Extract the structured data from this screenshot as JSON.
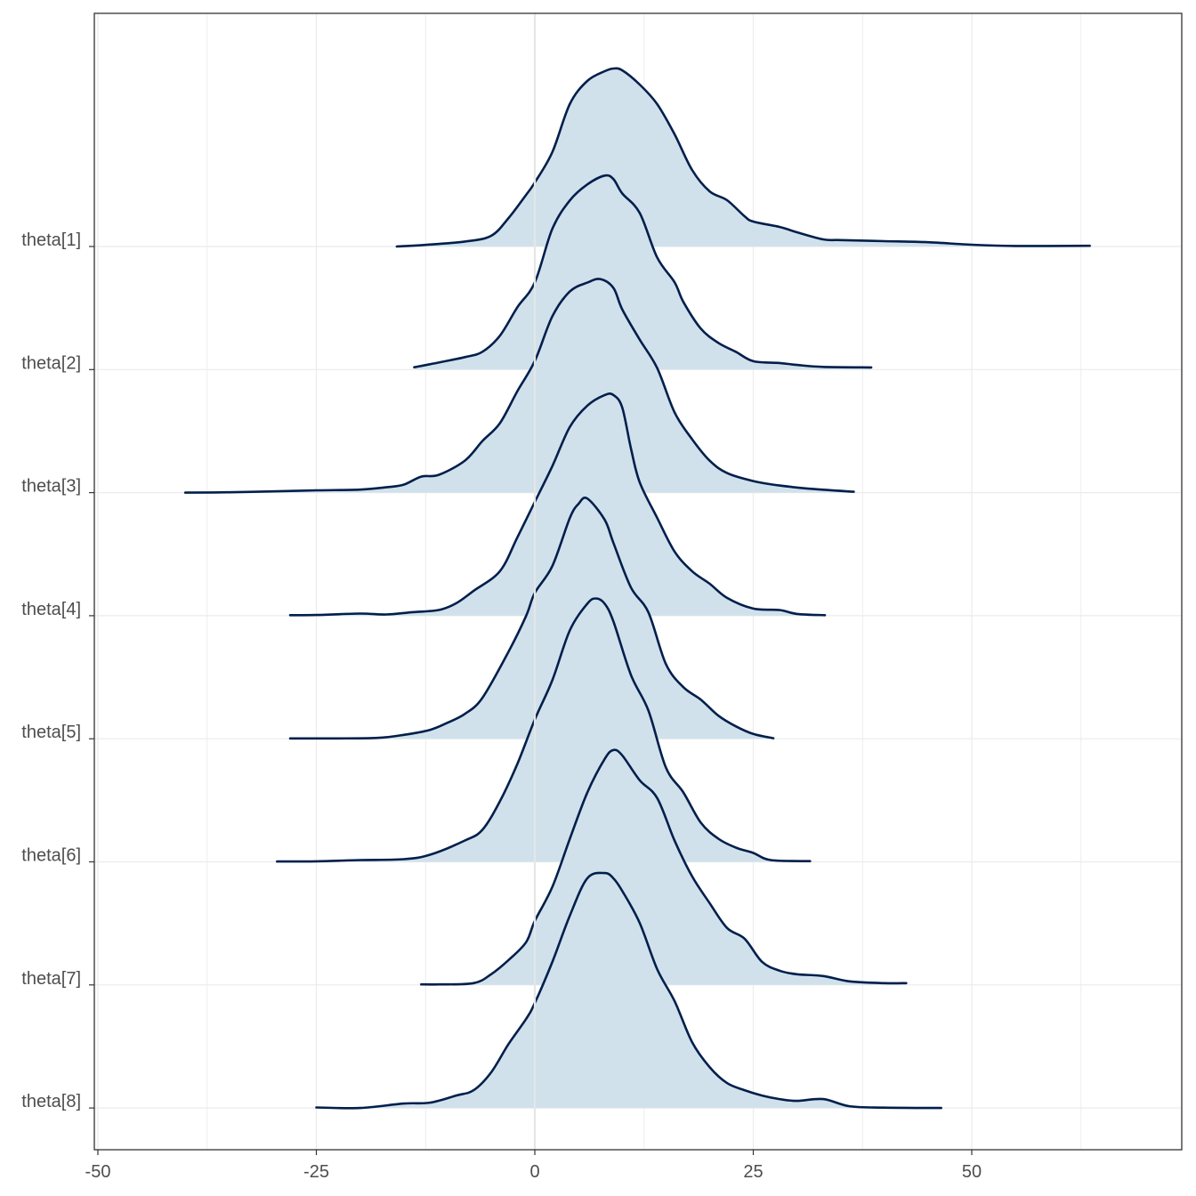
{
  "chart_data": {
    "type": "ridgeline",
    "title": "",
    "xlabel": "",
    "ylabel": "",
    "xlim": [
      -50,
      72
    ],
    "x_ticks": [
      -50,
      -25,
      0,
      25,
      50
    ],
    "x_tick_labels": [
      "-50",
      "-25",
      "0",
      "25",
      "50"
    ],
    "grid": true,
    "legend": "none",
    "colors": {
      "fill": "#d1e1ec",
      "line": "#011f4b",
      "grid": "#ebebeb",
      "vline": "#e6e6e6"
    },
    "vline_x": 0,
    "series": [
      {
        "name": "theta[1]",
        "density": [
          [
            -15.8,
            0
          ],
          [
            -12.5,
            0.009
          ],
          [
            -8,
            0.028
          ],
          [
            -5,
            0.06
          ],
          [
            -3,
            0.16
          ],
          [
            -1,
            0.29
          ],
          [
            0,
            0.36
          ],
          [
            2,
            0.53
          ],
          [
            4,
            0.8
          ],
          [
            6,
            0.93
          ],
          [
            8,
            0.985
          ],
          [
            9,
            1.0
          ],
          [
            10,
            0.99
          ],
          [
            12,
            0.91
          ],
          [
            14,
            0.8
          ],
          [
            16,
            0.63
          ],
          [
            18,
            0.43
          ],
          [
            20,
            0.31
          ],
          [
            22,
            0.26
          ],
          [
            24,
            0.17
          ],
          [
            25,
            0.14
          ],
          [
            28,
            0.11
          ],
          [
            30,
            0.08
          ],
          [
            33,
            0.04
          ],
          [
            35,
            0.036
          ],
          [
            40,
            0.03
          ],
          [
            45,
            0.024
          ],
          [
            50,
            0.01
          ],
          [
            55,
            0.003
          ],
          [
            63.5,
            0.004
          ]
        ]
      },
      {
        "name": "theta[2]",
        "density": [
          [
            -13.8,
            0.013
          ],
          [
            -12,
            0.03
          ],
          [
            -8,
            0.07
          ],
          [
            -6,
            0.1
          ],
          [
            -4,
            0.19
          ],
          [
            -2,
            0.35
          ],
          [
            0,
            0.49
          ],
          [
            2,
            0.79
          ],
          [
            4,
            0.95
          ],
          [
            6,
            1.04
          ],
          [
            8,
            1.09
          ],
          [
            9,
            1.07
          ],
          [
            10,
            0.99
          ],
          [
            12,
            0.88
          ],
          [
            14,
            0.63
          ],
          [
            16,
            0.49
          ],
          [
            17,
            0.38
          ],
          [
            19,
            0.23
          ],
          [
            21,
            0.15
          ],
          [
            23,
            0.1
          ],
          [
            25,
            0.047
          ],
          [
            28,
            0.037
          ],
          [
            30,
            0.026
          ],
          [
            33,
            0.015
          ],
          [
            38.5,
            0.012
          ]
        ]
      },
      {
        "name": "theta[3]",
        "density": [
          [
            -40,
            0
          ],
          [
            -35,
            0.002
          ],
          [
            -30,
            0.007
          ],
          [
            -25,
            0.013
          ],
          [
            -20,
            0.017
          ],
          [
            -17,
            0.03
          ],
          [
            -15,
            0.045
          ],
          [
            -13,
            0.09
          ],
          [
            -11,
            0.1
          ],
          [
            -8,
            0.18
          ],
          [
            -6,
            0.29
          ],
          [
            -4,
            0.39
          ],
          [
            -2,
            0.57
          ],
          [
            0,
            0.74
          ],
          [
            2,
            0.99
          ],
          [
            4,
            1.13
          ],
          [
            6,
            1.18
          ],
          [
            7.5,
            1.2
          ],
          [
            9,
            1.15
          ],
          [
            10,
            1.03
          ],
          [
            12,
            0.86
          ],
          [
            14,
            0.7
          ],
          [
            16,
            0.45
          ],
          [
            18,
            0.3
          ],
          [
            20,
            0.18
          ],
          [
            22,
            0.11
          ],
          [
            25,
            0.065
          ],
          [
            28,
            0.04
          ],
          [
            32,
            0.02
          ],
          [
            36.5,
            0.005
          ]
        ]
      },
      {
        "name": "theta[4]",
        "density": [
          [
            -28,
            0.003
          ],
          [
            -25,
            0.004
          ],
          [
            -20,
            0.012
          ],
          [
            -17,
            0.007
          ],
          [
            -14,
            0.02
          ],
          [
            -11,
            0.032
          ],
          [
            -9,
            0.07
          ],
          [
            -7,
            0.14
          ],
          [
            -4,
            0.25
          ],
          [
            -2,
            0.44
          ],
          [
            0,
            0.64
          ],
          [
            2,
            0.84
          ],
          [
            4,
            1.06
          ],
          [
            6,
            1.18
          ],
          [
            8,
            1.24
          ],
          [
            9,
            1.24
          ],
          [
            10,
            1.17
          ],
          [
            11,
            0.94
          ],
          [
            12,
            0.75
          ],
          [
            14,
            0.55
          ],
          [
            16,
            0.36
          ],
          [
            18,
            0.25
          ],
          [
            20,
            0.18
          ],
          [
            22,
            0.1
          ],
          [
            25,
            0.04
          ],
          [
            28,
            0.032
          ],
          [
            30,
            0.01
          ],
          [
            33.2,
            0.003
          ]
        ]
      },
      {
        "name": "theta[5]",
        "density": [
          [
            -28,
            0.002
          ],
          [
            -23,
            0.002
          ],
          [
            -18,
            0.005
          ],
          [
            -15,
            0.022
          ],
          [
            -12,
            0.05
          ],
          [
            -10,
            0.09
          ],
          [
            -8,
            0.14
          ],
          [
            -6,
            0.23
          ],
          [
            -3,
            0.49
          ],
          [
            -1,
            0.69
          ],
          [
            0,
            0.82
          ],
          [
            2,
            0.97
          ],
          [
            4,
            1.24
          ],
          [
            5,
            1.32
          ],
          [
            6,
            1.35
          ],
          [
            8,
            1.23
          ],
          [
            9,
            1.1
          ],
          [
            11,
            0.85
          ],
          [
            13,
            0.71
          ],
          [
            15,
            0.42
          ],
          [
            17,
            0.29
          ],
          [
            19,
            0.22
          ],
          [
            21,
            0.13
          ],
          [
            23,
            0.07
          ],
          [
            25,
            0.027
          ],
          [
            27.3,
            0.003
          ]
        ]
      },
      {
        "name": "theta[6]",
        "density": [
          [
            -29.5,
            0.002
          ],
          [
            -25,
            0.003
          ],
          [
            -20,
            0.01
          ],
          [
            -15,
            0.015
          ],
          [
            -12,
            0.04
          ],
          [
            -8,
            0.12
          ],
          [
            -6,
            0.18
          ],
          [
            -4,
            0.34
          ],
          [
            -2,
            0.55
          ],
          [
            0,
            0.8
          ],
          [
            2,
            1.02
          ],
          [
            4,
            1.3
          ],
          [
            6,
            1.45
          ],
          [
            7,
            1.48
          ],
          [
            8,
            1.45
          ],
          [
            9,
            1.35
          ],
          [
            11,
            1.05
          ],
          [
            13,
            0.85
          ],
          [
            15,
            0.53
          ],
          [
            17,
            0.39
          ],
          [
            19,
            0.22
          ],
          [
            21,
            0.13
          ],
          [
            23,
            0.08
          ],
          [
            25,
            0.05
          ],
          [
            27,
            0.01
          ],
          [
            31.5,
            0.004
          ]
        ]
      },
      {
        "name": "theta[7]",
        "density": [
          [
            -13,
            0.003
          ],
          [
            -11,
            0.003
          ],
          [
            -7,
            0.01
          ],
          [
            -5,
            0.06
          ],
          [
            -3,
            0.14
          ],
          [
            -1,
            0.24
          ],
          [
            0,
            0.36
          ],
          [
            2,
            0.55
          ],
          [
            4,
            0.82
          ],
          [
            6,
            1.08
          ],
          [
            8,
            1.27
          ],
          [
            9,
            1.32
          ],
          [
            10,
            1.29
          ],
          [
            12,
            1.15
          ],
          [
            14,
            1.05
          ],
          [
            16,
            0.81
          ],
          [
            18,
            0.61
          ],
          [
            20,
            0.46
          ],
          [
            22,
            0.32
          ],
          [
            24,
            0.26
          ],
          [
            26,
            0.13
          ],
          [
            28,
            0.08
          ],
          [
            30,
            0.06
          ],
          [
            33,
            0.05
          ],
          [
            36,
            0.02
          ],
          [
            40,
            0.01
          ],
          [
            42.5,
            0.01
          ]
        ]
      },
      {
        "name": "theta[8]",
        "density": [
          [
            -25,
            0.003
          ],
          [
            -20,
            0
          ],
          [
            -15,
            0.025
          ],
          [
            -12,
            0.03
          ],
          [
            -9,
            0.07
          ],
          [
            -7,
            0.1
          ],
          [
            -5,
            0.2
          ],
          [
            -3,
            0.36
          ],
          [
            -1,
            0.5
          ],
          [
            0,
            0.59
          ],
          [
            2,
            0.82
          ],
          [
            4,
            1.08
          ],
          [
            6,
            1.29
          ],
          [
            8,
            1.32
          ],
          [
            9,
            1.29
          ],
          [
            10,
            1.22
          ],
          [
            12,
            1.04
          ],
          [
            14,
            0.78
          ],
          [
            16,
            0.6
          ],
          [
            18,
            0.37
          ],
          [
            20,
            0.23
          ],
          [
            22,
            0.14
          ],
          [
            24,
            0.1
          ],
          [
            26,
            0.07
          ],
          [
            28,
            0.05
          ],
          [
            30,
            0.04
          ],
          [
            33,
            0.05
          ],
          [
            36,
            0.01
          ],
          [
            40,
            0.002
          ],
          [
            46.5,
            0
          ]
        ]
      }
    ]
  }
}
